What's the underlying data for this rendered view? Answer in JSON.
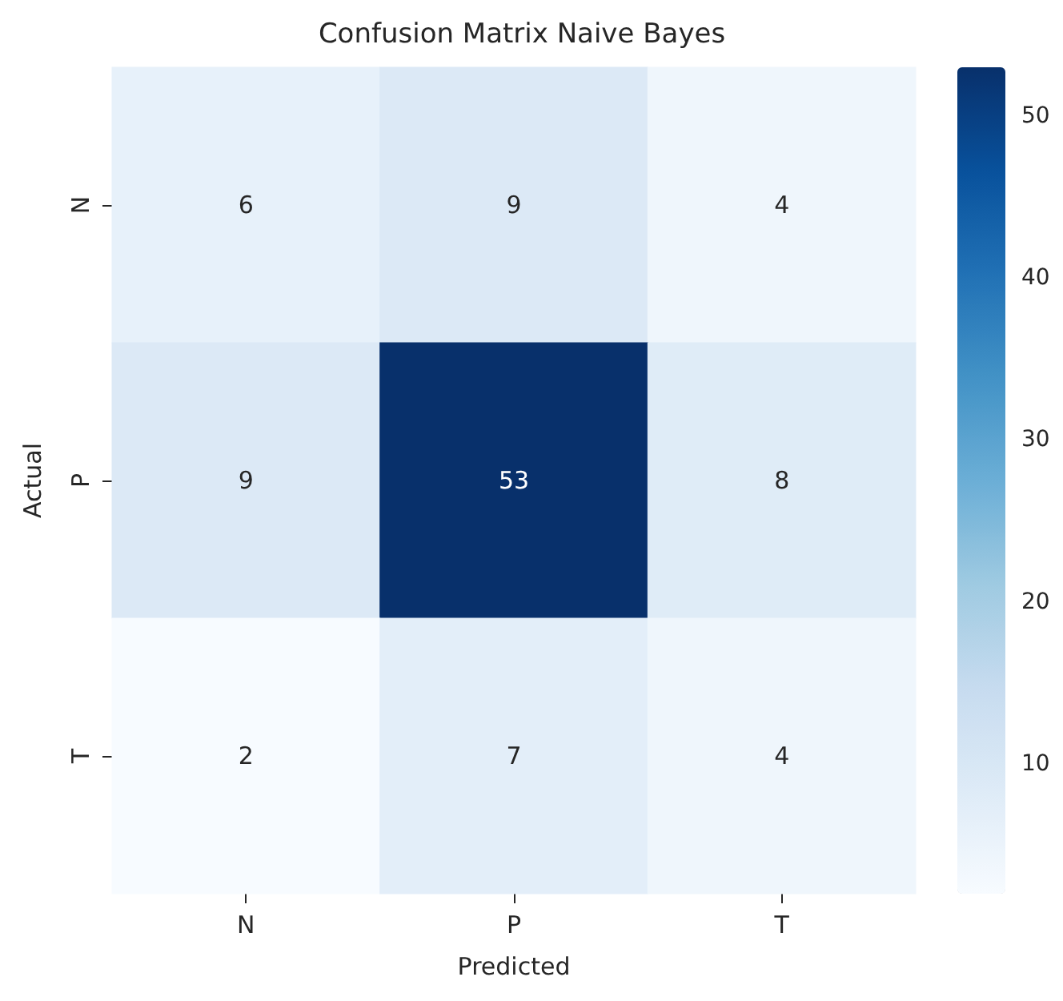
{
  "chart_data": {
    "type": "heatmap",
    "title": "Confusion Matrix Naive Bayes",
    "xlabel": "Predicted",
    "ylabel": "Actual",
    "categories": [
      "N",
      "P",
      "T"
    ],
    "y_categories": [
      "N",
      "P",
      "T"
    ],
    "cells": [
      [
        6,
        9,
        4
      ],
      [
        9,
        53,
        8
      ],
      [
        2,
        7,
        4
      ]
    ],
    "clim": [
      2,
      53
    ],
    "cticks": [
      10,
      20,
      30,
      40,
      50
    ],
    "data_labels": true
  }
}
